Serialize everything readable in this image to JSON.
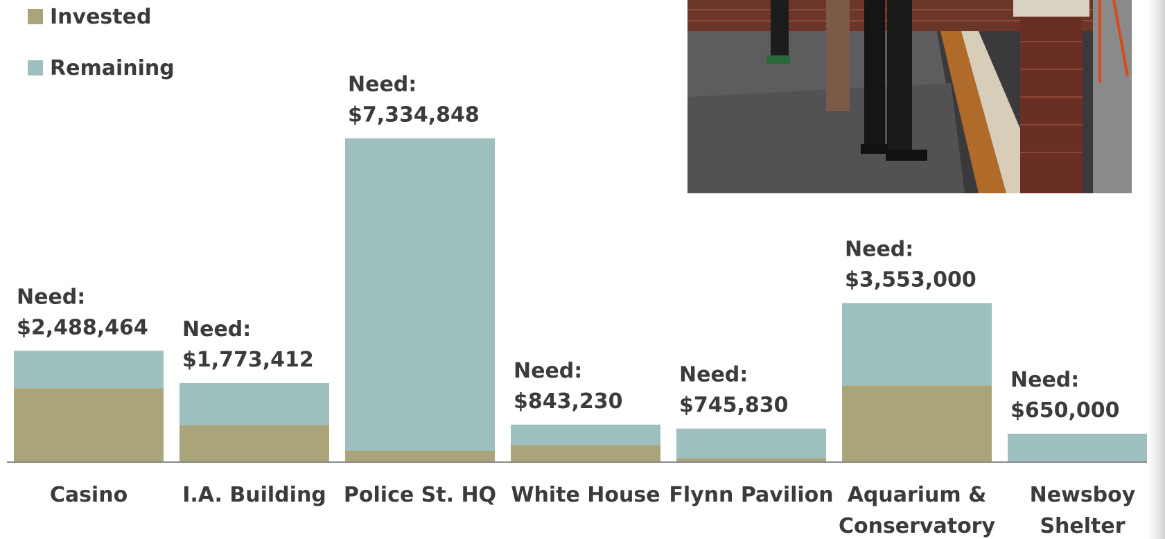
{
  "legend": {
    "invested_label": "Invested",
    "remaining_label": "Remaining"
  },
  "colors": {
    "invested": "#a9a47a",
    "remaining": "#9dbfbe",
    "text": "#3b3b3b",
    "axis": "#8a8a8a"
  },
  "photo": {
    "alt": "photograph of people on a flat rooftop next to a brick parapet"
  },
  "chart_data": {
    "type": "bar",
    "stacked": true,
    "categories": [
      [
        "Casino"
      ],
      [
        "I.A. Building"
      ],
      [
        "Police St. HQ"
      ],
      [
        "White House"
      ],
      [
        "Flynn Pavilion"
      ],
      [
        "Aquarium &",
        "Conservatory"
      ],
      [
        "Newsboy",
        "Shelter"
      ]
    ],
    "series": [
      {
        "name": "Invested",
        "values": [
          1300000,
          650000,
          200000,
          300000,
          70000,
          1350000,
          0
        ]
      },
      {
        "name": "Remaining",
        "values": [
          660000,
          740000,
          5500000,
          360000,
          520000,
          1450000,
          500000
        ]
      }
    ],
    "need_prefix": "Need:",
    "need_labels": [
      "$2,488,464",
      "$1,773,412",
      "$7,334,848",
      "$843,230",
      "$745,830",
      "$3,553,000",
      "$650,000"
    ],
    "ylim": [
      0,
      7000000
    ],
    "grid": false,
    "legend_position": "top-left"
  }
}
